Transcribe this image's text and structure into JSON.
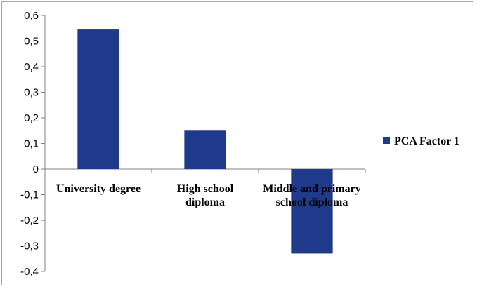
{
  "chart_data": {
    "type": "bar",
    "title": "",
    "xlabel": "",
    "ylabel": "",
    "categories": [
      [
        "University degree"
      ],
      [
        "High school",
        "diploma"
      ],
      [
        "Middle and primary",
        "school diploma"
      ]
    ],
    "series": [
      {
        "name": "PCA Factor 1",
        "color": "#1f3a8a",
        "values": [
          0.545,
          0.15,
          -0.33
        ]
      }
    ],
    "ylim": [
      -0.4,
      0.6
    ],
    "yticks": [
      0.6,
      0.5,
      0.4,
      0.3,
      0.2,
      0.1,
      0,
      -0.1,
      -0.2,
      -0.3,
      -0.4
    ],
    "ytick_labels": [
      "0,6",
      "0,5",
      "0,4",
      "0,3",
      "0,2",
      "0,1",
      "0",
      "-0,1",
      "-0,2",
      "-0,3",
      "-0,4"
    ],
    "grid": false,
    "legend_position": "right"
  }
}
